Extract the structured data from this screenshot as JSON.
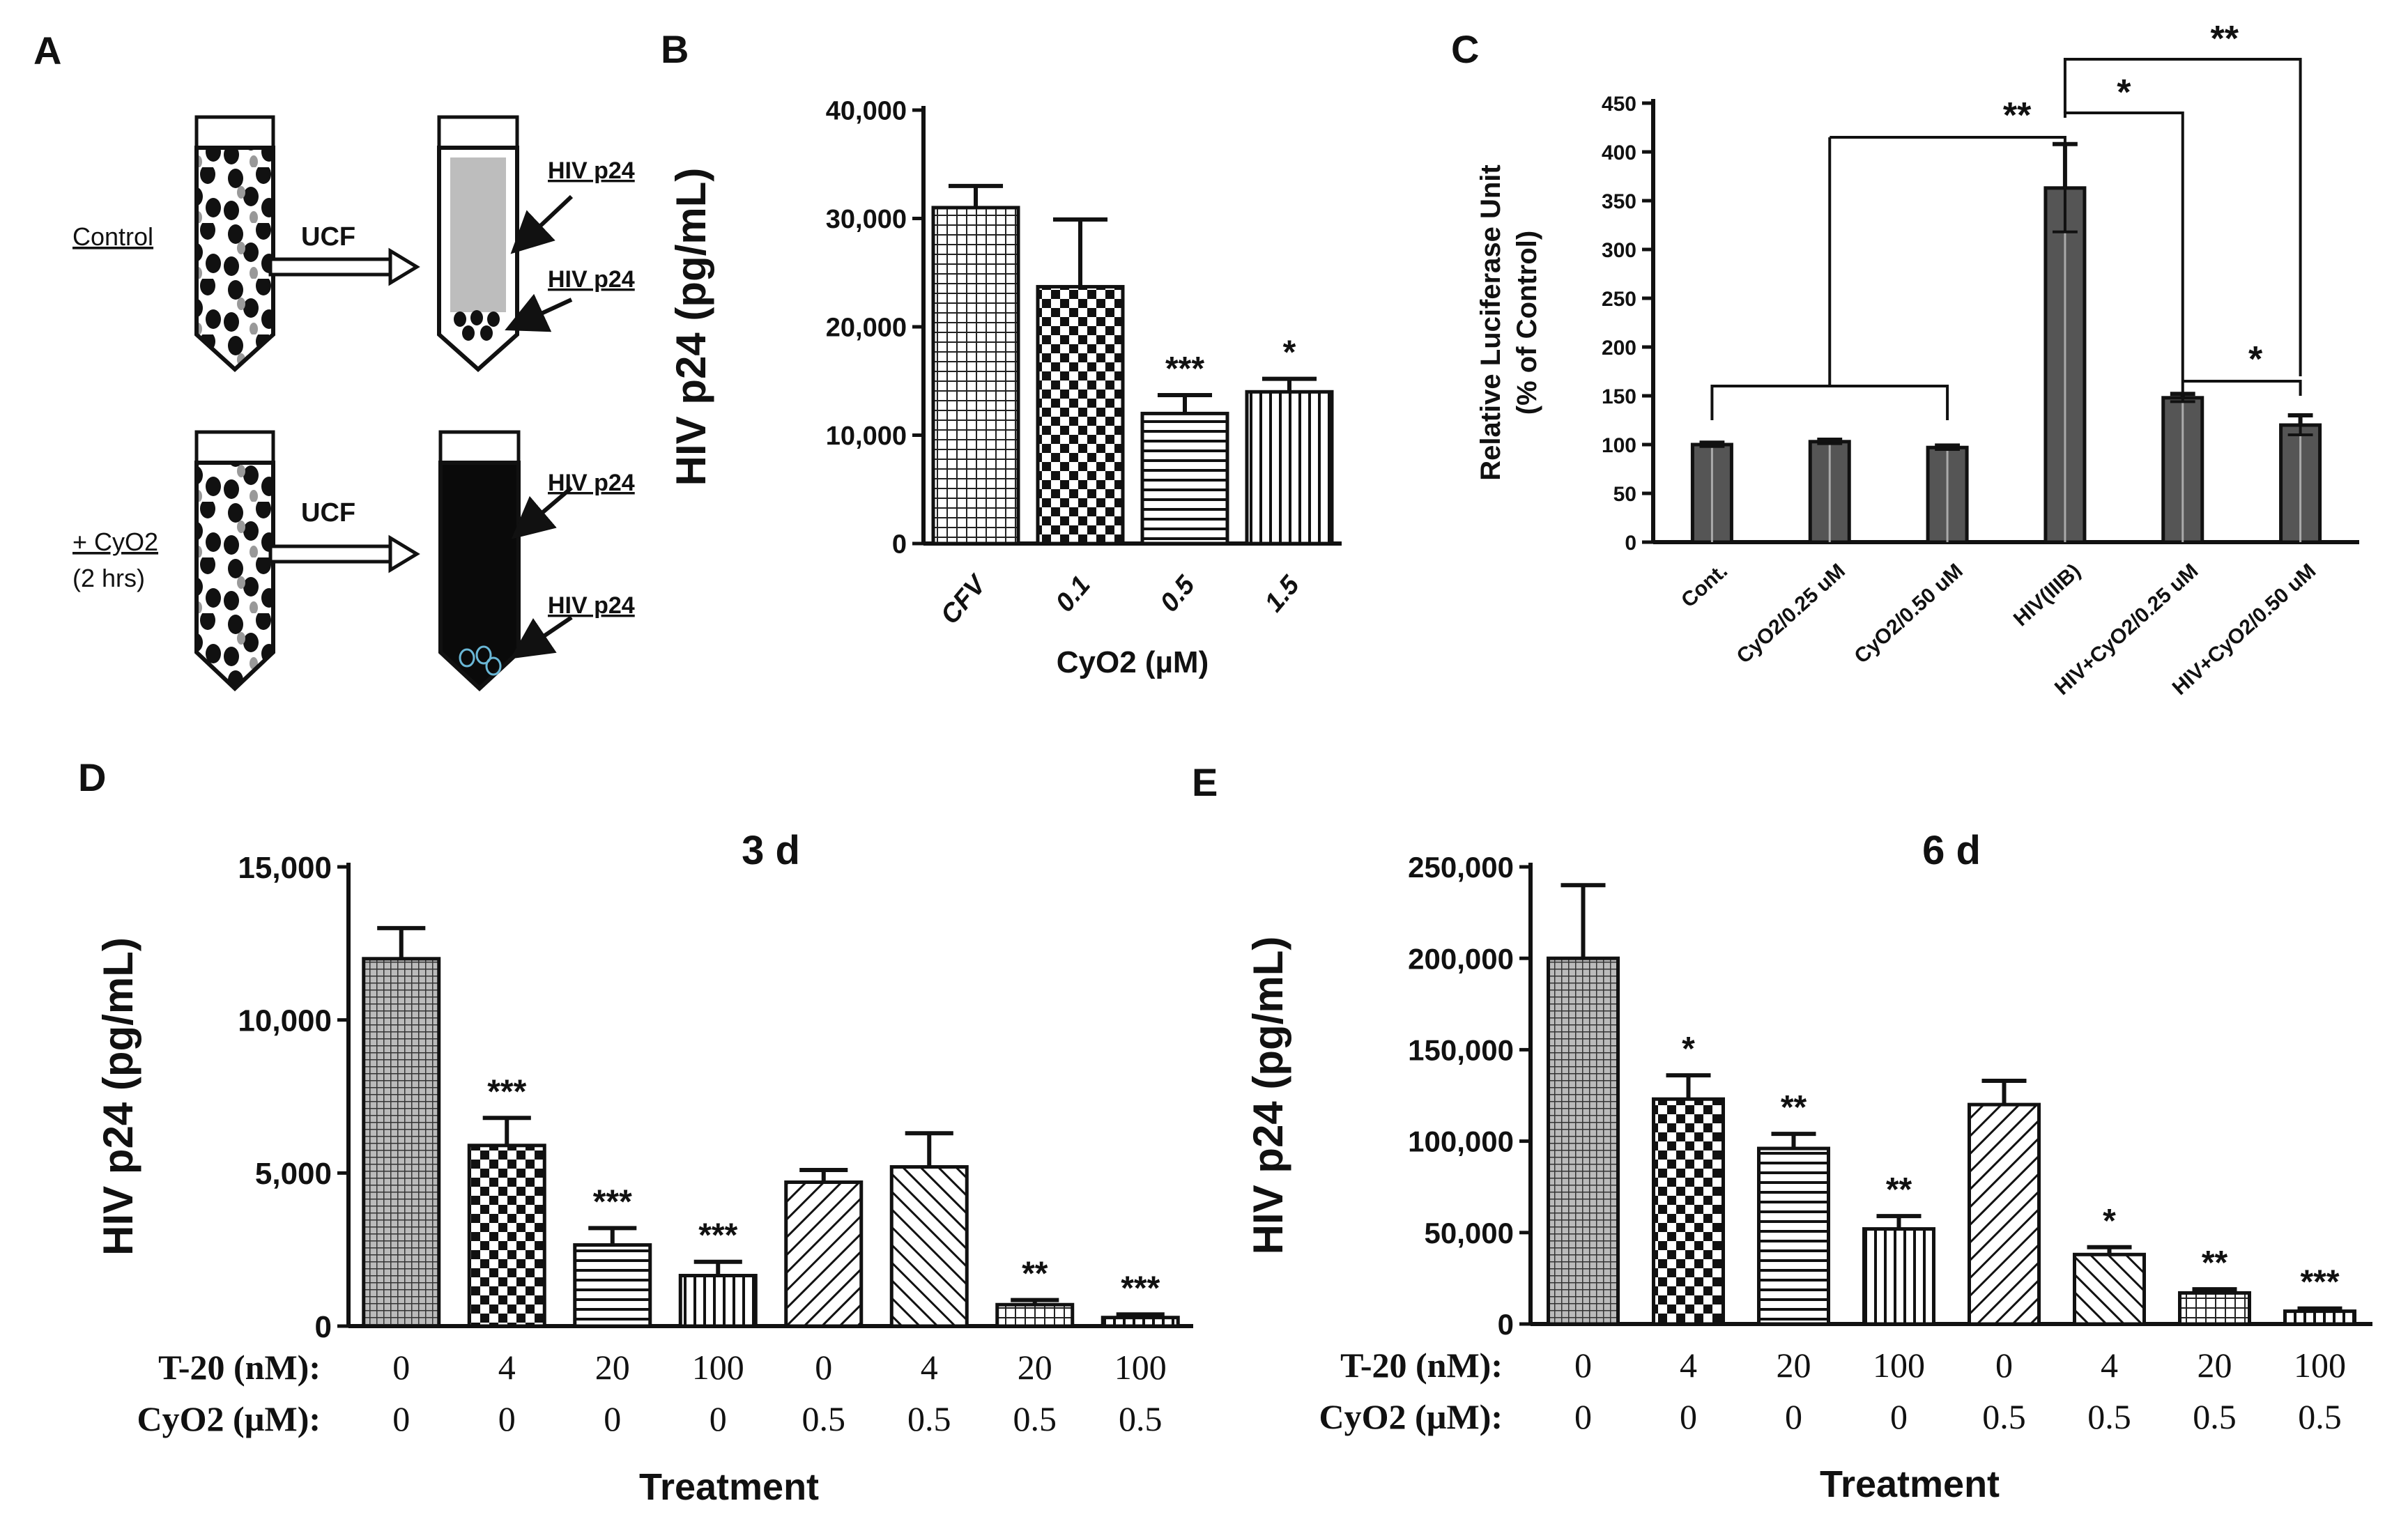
{
  "panels": {
    "A": {
      "letter": "A",
      "control_label": "Control",
      "cyo2_label": "+ CyO2",
      "cyo2_time": "(2 hrs)",
      "arrow_label": "UCF",
      "p24_label": "HIV p24"
    }
  },
  "chart_data": [
    {
      "id": "B",
      "letter": "B",
      "type": "bar",
      "title": "",
      "ylabel": "HIV p24 (pg/mL)",
      "xlabel": "CyO2 (µM)",
      "categories": [
        "CFV",
        "0.1",
        "0.5",
        "1.5"
      ],
      "values": [
        31000,
        23700,
        12000,
        14000
      ],
      "errors": [
        2000,
        6200,
        1700,
        1200
      ],
      "significance": [
        "",
        "",
        "***",
        "*"
      ],
      "ylim": [
        0,
        40000
      ],
      "yticks": [
        "0",
        "10,000",
        "20,000",
        "30,000",
        "40,000"
      ],
      "patterns": [
        "grid",
        "checker",
        "hlines",
        "vlines"
      ]
    },
    {
      "id": "C",
      "letter": "C",
      "type": "bar",
      "title": "",
      "ylabel": "Relative Luciferase Unit (% of Control)",
      "ylabel_line1": "Relative Luciferase Unit",
      "ylabel_line2": "(% of Control)",
      "categories": [
        "Cont.",
        "CyO2/0.25 uM",
        "CyO2/0.50 uM",
        "HIV(IIIB)",
        "HIV+CyO2/0.25 uM",
        "HIV+CyO2/0.50 uM"
      ],
      "values": [
        100,
        103,
        97,
        363,
        148,
        120
      ],
      "errors": [
        2,
        2,
        2,
        45,
        4,
        10
      ],
      "ylim": [
        0,
        450
      ],
      "yticks": [
        "0",
        "50",
        "100",
        "150",
        "200",
        "250",
        "300",
        "350",
        "400",
        "450"
      ],
      "brackets": [
        {
          "label": "**",
          "from": "Cont.–CyO2/0.50 uM group",
          "to": "HIV(IIIB)"
        },
        {
          "label": "*",
          "from": "HIV(IIIB)",
          "to": "HIV+CyO2/0.25 uM"
        },
        {
          "label": "**",
          "from": "HIV(IIIB)",
          "to": "HIV+CyO2/0.50 uM"
        },
        {
          "label": "*",
          "from": "HIV+CyO2/0.25 uM",
          "to": "HIV+CyO2/0.50 uM"
        }
      ]
    },
    {
      "id": "D",
      "letter": "D",
      "type": "bar",
      "title": "3 d",
      "ylabel": "HIV p24 (pg/mL)",
      "xlabel": "Treatment",
      "row1_label": "T-20 (nM):",
      "row2_label": "CyO2 (µM):",
      "t20": [
        "0",
        "4",
        "20",
        "100",
        "0",
        "4",
        "20",
        "100"
      ],
      "cyo2": [
        "0",
        "0",
        "0",
        "0",
        "0.5",
        "0.5",
        "0.5",
        "0.5"
      ],
      "values": [
        12000,
        5900,
        2650,
        1650,
        4700,
        5200,
        700,
        280
      ],
      "errors": [
        1000,
        900,
        550,
        450,
        400,
        1100,
        150,
        100
      ],
      "significance": [
        "",
        "***",
        "***",
        "***",
        "",
        "",
        "**",
        "***"
      ],
      "ylim": [
        0,
        15000
      ],
      "yticks": [
        "0",
        "5,000",
        "10,000",
        "15,000"
      ],
      "patterns": [
        "fine",
        "checker",
        "hlines",
        "vlines",
        "diag",
        "diag2",
        "grid",
        "vlines"
      ]
    },
    {
      "id": "E",
      "letter": "E",
      "type": "bar",
      "title": "6 d",
      "ylabel": "HIV p24 (pg/mL)",
      "xlabel": "Treatment",
      "row1_label": "T-20 (nM):",
      "row2_label": "CyO2 (µM):",
      "t20": [
        "0",
        "4",
        "20",
        "100",
        "0",
        "4",
        "20",
        "100"
      ],
      "cyo2": [
        "0",
        "0",
        "0",
        "0",
        "0.5",
        "0.5",
        "0.5",
        "0.5"
      ],
      "values": [
        200000,
        123000,
        96000,
        52000,
        120000,
        38000,
        17000,
        7000
      ],
      "errors": [
        40000,
        13000,
        8000,
        7000,
        13000,
        4000,
        2000,
        1500
      ],
      "significance": [
        "",
        "*",
        "**",
        "**",
        "",
        "*",
        "**",
        "***"
      ],
      "ylim": [
        0,
        250000
      ],
      "yticks": [
        "0",
        "50,000",
        "100,000",
        "150,000",
        "200,000",
        "250,000"
      ],
      "patterns": [
        "fine",
        "checker",
        "hlines",
        "vlines",
        "diag",
        "diag2",
        "grid",
        "vlines"
      ]
    }
  ],
  "colors": {
    "ink": "#111111",
    "bar_dark": "#555555",
    "tube_fill": "#ffffff",
    "tube_light": "#bdbdbd",
    "tube_dark": "#0a0a0a"
  }
}
